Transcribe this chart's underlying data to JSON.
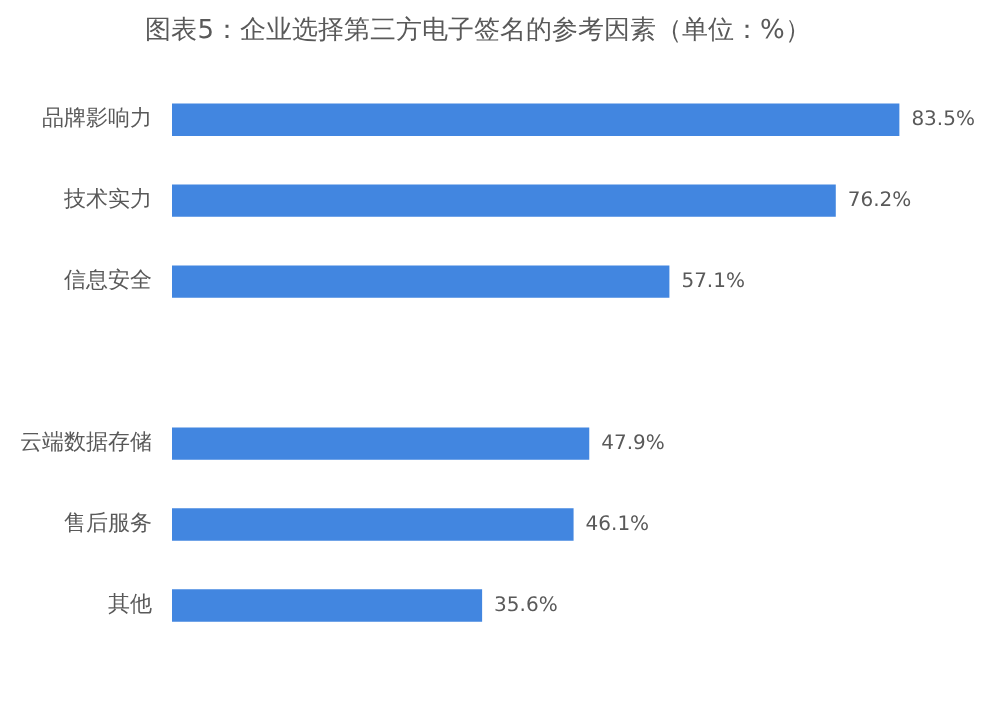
{
  "chart_data": {
    "type": "bar",
    "orientation": "horizontal",
    "title": "图表5：企业选择第三方电子签名的参考因素（单位：%）",
    "categories": [
      "品牌影响力",
      "技术实力",
      "信息安全",
      null,
      "云端数据存储",
      "售后服务",
      "其他"
    ],
    "values": [
      83.5,
      76.2,
      57.1,
      null,
      47.9,
      46.1,
      35.6
    ],
    "value_labels": [
      "83.5%",
      "76.2%",
      "57.1%",
      null,
      "47.9%",
      "46.1%",
      "35.6%"
    ],
    "color": "#4286e0",
    "grid": false,
    "legend": false,
    "tick_labels": "y"
  }
}
